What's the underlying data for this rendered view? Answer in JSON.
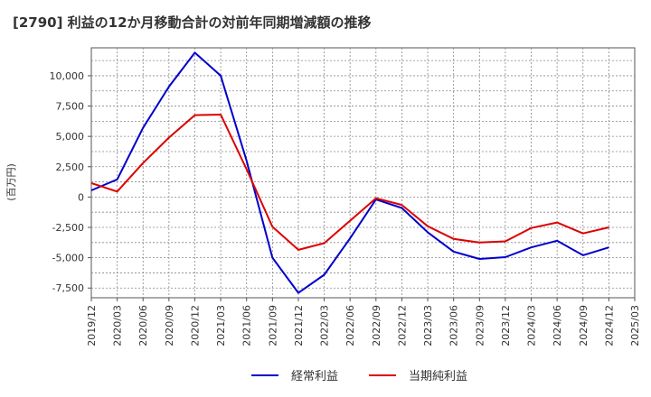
{
  "chart_data": {
    "type": "line",
    "title": "[2790]  利益の12か月移動合計の対前年同期増減額の推移",
    "ylabel": "(百万円)",
    "xlabel": "",
    "ylim": [
      -8300,
      12300
    ],
    "yticks": [
      10000,
      7500,
      5000,
      2500,
      0,
      -2500,
      -5000,
      -7500
    ],
    "ytick_labels": [
      "10,000",
      "7,500",
      "5,000",
      "2,500",
      "0",
      "-2,500",
      "-5,000",
      "-7,500"
    ],
    "x_tick_labels": [
      "2019/12",
      "2020/03",
      "2020/06",
      "2020/09",
      "2020/12",
      "2021/03",
      "2021/06",
      "2021/09",
      "2021/12",
      "2022/03",
      "2022/06",
      "2022/09",
      "2022/12",
      "2023/03",
      "2023/06",
      "2023/09",
      "2023/12",
      "2024/03",
      "2024/06",
      "2024/09",
      "2024/12",
      "2025/03"
    ],
    "categories": [
      "2019/12",
      "2020/03",
      "2020/06",
      "2020/09",
      "2020/12",
      "2021/03",
      "2021/06",
      "2021/09",
      "2021/12",
      "2022/03",
      "2022/06",
      "2022/09",
      "2022/12",
      "2023/03",
      "2023/06",
      "2023/09",
      "2023/12",
      "2024/03",
      "2024/06",
      "2024/09",
      "2024/12"
    ],
    "series": [
      {
        "name": "経常利益",
        "color": "#0000cc",
        "values": [
          550,
          1450,
          5700,
          9100,
          11900,
          10000,
          3000,
          -5000,
          -7900,
          -6400,
          -3400,
          -200,
          -900,
          -2900,
          -4500,
          -5100,
          -4950,
          -4150,
          -3600,
          -4800,
          -4150
        ]
      },
      {
        "name": "当期純利益",
        "color": "#dd0000",
        "values": [
          1150,
          450,
          2800,
          4900,
          6750,
          6800,
          2300,
          -2450,
          -4350,
          -3800,
          -1950,
          -100,
          -650,
          -2400,
          -3450,
          -3750,
          -3650,
          -2550,
          -2100,
          -3000,
          -2500
        ]
      }
    ],
    "legend": [
      "経常利益",
      "当期純利益"
    ],
    "legend_position": "bottom",
    "grid": true
  }
}
